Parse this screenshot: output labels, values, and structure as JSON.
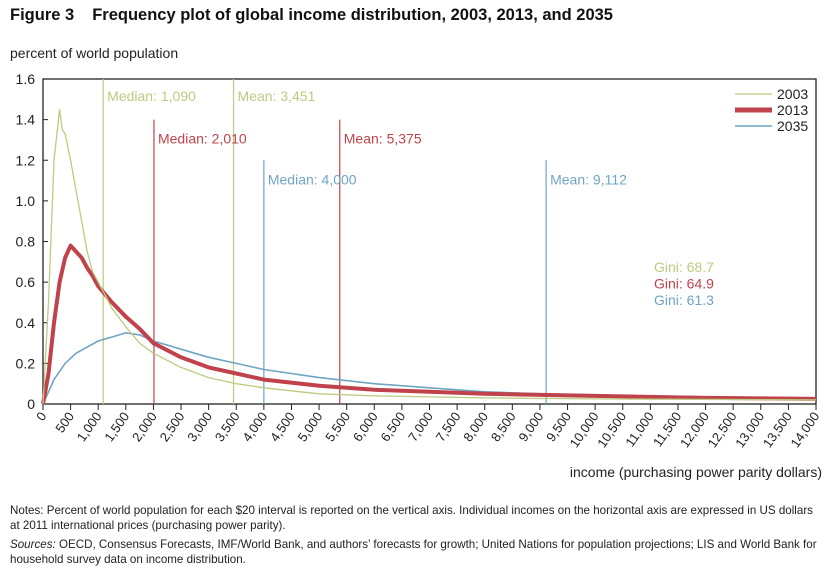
{
  "figure": {
    "number": "Figure 3",
    "title": "Frequency plot of global income distribution, 2003, 2013, and 2035"
  },
  "notes": {
    "notes_text": "Notes: Percent of world population for each $20 interval is reported on the vertical axis. Individual incomes on the horizontal axis are expressed in US dollars at 2011 international prices (purchasing power parity).",
    "sources_label": "Sources:",
    "sources_text": " OECD, Consensus Forecasts, IMF/World Bank, and authors’ forecasts for growth; United Nations for population projections; LIS and World Bank for household survey data on income distribution."
  },
  "chart_data": {
    "type": "line",
    "title": "Frequency plot of global income distribution, 2003, 2013, and 2035",
    "xlabel": "income (purchasing power parity dollars)",
    "ylabel": "percent of world population",
    "xlim": [
      0,
      14000
    ],
    "ylim": [
      0,
      1.6
    ],
    "grid": false,
    "legend_position": "top-right",
    "yticks": [
      "0",
      "0.2",
      "0.4",
      "0.6",
      "0.8",
      "1.0",
      "1.2",
      "1.4",
      "1.6"
    ],
    "xticks": [
      "0",
      "500",
      "1,000",
      "1,500",
      "2,000",
      "2,500",
      "3,000",
      "3,500",
      "4,000",
      "4,500",
      "5,000",
      "5,500",
      "6,000",
      "6,500",
      "7,000",
      "7,500",
      "8,000",
      "8,500",
      "9,000",
      "9,500",
      "10,000",
      "10,500",
      "11,000",
      "11,500",
      "12,000",
      "12,500",
      "13,000",
      "13,500",
      "14,000"
    ],
    "series": [
      {
        "name": "2003",
        "color": "#bccb7f",
        "x": [
          0,
          100,
          200,
          300,
          350,
          400,
          500,
          600,
          700,
          800,
          900,
          1000,
          1100,
          1250,
          1500,
          1750,
          2000,
          2500,
          3000,
          3500,
          4000,
          5000,
          6000,
          8000,
          10000,
          14000
        ],
        "y": [
          0,
          0.5,
          1.2,
          1.45,
          1.35,
          1.33,
          1.2,
          1.05,
          0.9,
          0.75,
          0.65,
          0.6,
          0.55,
          0.47,
          0.38,
          0.3,
          0.25,
          0.18,
          0.13,
          0.1,
          0.08,
          0.05,
          0.04,
          0.03,
          0.025,
          0.02
        ]
      },
      {
        "name": "2013",
        "color": "#c0434b",
        "x": [
          0,
          100,
          200,
          300,
          400,
          500,
          600,
          700,
          800,
          900,
          1000,
          1250,
          1500,
          1750,
          2000,
          2500,
          3000,
          3500,
          4000,
          5000,
          6000,
          7000,
          8000,
          10000,
          12000,
          14000
        ],
        "y": [
          0,
          0.15,
          0.4,
          0.6,
          0.72,
          0.78,
          0.75,
          0.72,
          0.67,
          0.63,
          0.58,
          0.5,
          0.43,
          0.37,
          0.3,
          0.23,
          0.18,
          0.15,
          0.12,
          0.09,
          0.07,
          0.06,
          0.05,
          0.04,
          0.03,
          0.025
        ]
      },
      {
        "name": "2035",
        "color": "#6fa5c4",
        "x": [
          0,
          200,
          400,
          600,
          800,
          1000,
          1250,
          1500,
          1750,
          2000,
          2500,
          3000,
          3500,
          4000,
          5000,
          6000,
          7000,
          8000,
          9000,
          10000,
          12000,
          14000
        ],
        "y": [
          0,
          0.12,
          0.2,
          0.25,
          0.28,
          0.31,
          0.33,
          0.35,
          0.34,
          0.31,
          0.27,
          0.23,
          0.2,
          0.17,
          0.13,
          0.1,
          0.08,
          0.06,
          0.05,
          0.045,
          0.035,
          0.03
        ]
      }
    ],
    "markers": [
      {
        "label": "Median: 1,090",
        "x": 1090,
        "top": 1.6,
        "series": "2003"
      },
      {
        "label": "Mean: 3,451",
        "x": 3451,
        "top": 1.6,
        "series": "2003"
      },
      {
        "label": "Median: 2,010",
        "x": 2010,
        "top": 1.4,
        "series": "2013"
      },
      {
        "label": "Mean: 5,375",
        "x": 5375,
        "top": 1.4,
        "series": "2013"
      },
      {
        "label": "Median: 4,000",
        "x": 4000,
        "top": 1.2,
        "series": "2035"
      },
      {
        "label": "Mean: 9,112",
        "x": 9112,
        "top": 1.2,
        "series": "2035"
      }
    ],
    "annotations": [
      {
        "text": "Gini: 68.7",
        "series": "2003"
      },
      {
        "text": "Gini: 64.9",
        "series": "2013"
      },
      {
        "text": "Gini: 61.3",
        "series": "2035"
      }
    ]
  }
}
